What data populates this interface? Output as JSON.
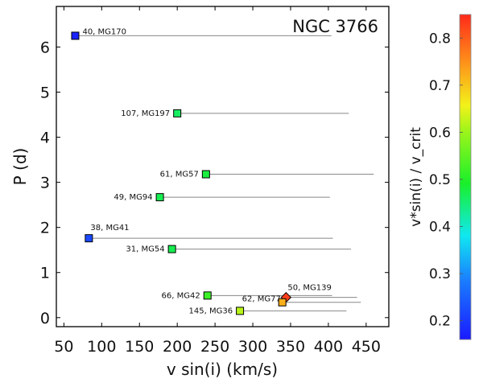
{
  "chart_data": {
    "type": "scatter",
    "title": "NGC 3766",
    "xlabel": "v sin(i) (km/s)",
    "ylabel": "P (d)",
    "xlim": [
      40,
      480
    ],
    "ylim": [
      -0.2,
      6.9
    ],
    "xticks": [
      50,
      100,
      150,
      200,
      250,
      300,
      350,
      400,
      450
    ],
    "yticks": [
      0,
      1,
      2,
      3,
      4,
      5,
      6
    ],
    "colorbar": {
      "label": "v*sin(i) / v_crit",
      "range": [
        0.16,
        0.85
      ],
      "ticks": [
        0.2,
        0.3,
        0.4,
        0.5,
        0.6,
        0.7,
        0.8
      ]
    },
    "points": [
      {
        "label": "40, MG170",
        "vsini": 65,
        "period": 6.25,
        "xmax": 404,
        "ratio": 0.17,
        "marker": "square"
      },
      {
        "label": "107, MG197",
        "vsini": 200,
        "period": 4.53,
        "xmax": 427,
        "ratio": 0.46,
        "marker": "square"
      },
      {
        "label": "61, MG57",
        "vsini": 238,
        "period": 3.18,
        "xmax": 460,
        "ratio": 0.48,
        "marker": "square"
      },
      {
        "label": "49, MG94",
        "vsini": 177,
        "period": 2.67,
        "xmax": 402,
        "ratio": 0.47,
        "marker": "square"
      },
      {
        "label": "38, MG41",
        "vsini": 83,
        "period": 1.76,
        "xmax": 406,
        "ratio": 0.22,
        "marker": "square"
      },
      {
        "label": "31, MG54",
        "vsini": 193,
        "period": 1.52,
        "xmax": 430,
        "ratio": 0.47,
        "marker": "square"
      },
      {
        "label": "66, MG42",
        "vsini": 240,
        "period": 0.49,
        "xmax": 405,
        "ratio": 0.52,
        "marker": "square"
      },
      {
        "label": "50, MG139",
        "vsini": 344,
        "period": 0.45,
        "xmax": 438,
        "ratio": 0.83,
        "marker": "diamond"
      },
      {
        "label": "62, MG77",
        "vsini": 339,
        "period": 0.34,
        "xmax": 443,
        "ratio": 0.72,
        "marker": "square"
      },
      {
        "label": "145, MG36",
        "vsini": 283,
        "period": 0.15,
        "xmax": 424,
        "ratio": 0.62,
        "marker": "square"
      }
    ]
  }
}
